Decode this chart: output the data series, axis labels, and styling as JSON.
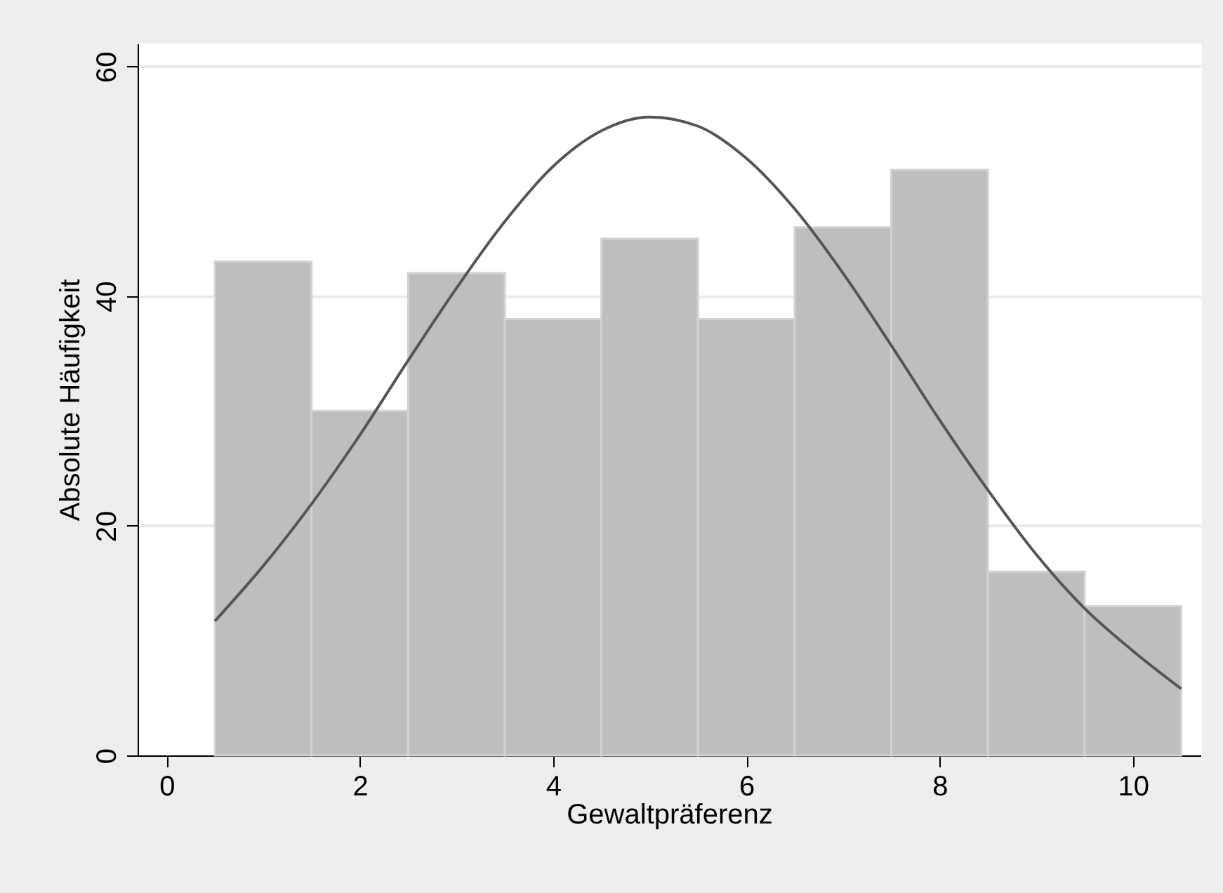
{
  "chart_data": {
    "type": "histogram",
    "xlabel": "Gewaltpräferenz",
    "ylabel": "Absolute Häufigkeit",
    "bins": [
      0.5,
      1.5,
      2.5,
      3.5,
      4.5,
      5.5,
      6.5,
      7.5,
      8.5,
      9.5,
      10.5
    ],
    "values": [
      43,
      30,
      42,
      38,
      45,
      38,
      46,
      51,
      16,
      13
    ],
    "color": "#bebebe",
    "series": [
      {
        "type": "line",
        "color": "#555555",
        "x": [
          0.5,
          1,
          1.5,
          2,
          2.5,
          3,
          3.5,
          4,
          4.5,
          5,
          5.5,
          6,
          6.5,
          7,
          7.5,
          8,
          8.5,
          9,
          9.5,
          10,
          10.5
        ],
        "values": [
          11.7,
          16.5,
          21.9,
          27.9,
          34.4,
          40.7,
          46.5,
          51.3,
          54.4,
          55.6,
          54.8,
          52.0,
          47.6,
          42.0,
          35.7,
          29.2,
          23.1,
          17.5,
          12.8,
          9.1,
          5.8
        ]
      }
    ],
    "xlim": [
      -0.3,
      10.7
    ],
    "ylim": [
      0,
      62
    ],
    "xticks": [
      0,
      2,
      4,
      6,
      8,
      10
    ],
    "yticks": [
      0,
      20,
      40,
      60
    ],
    "grid": "y"
  }
}
